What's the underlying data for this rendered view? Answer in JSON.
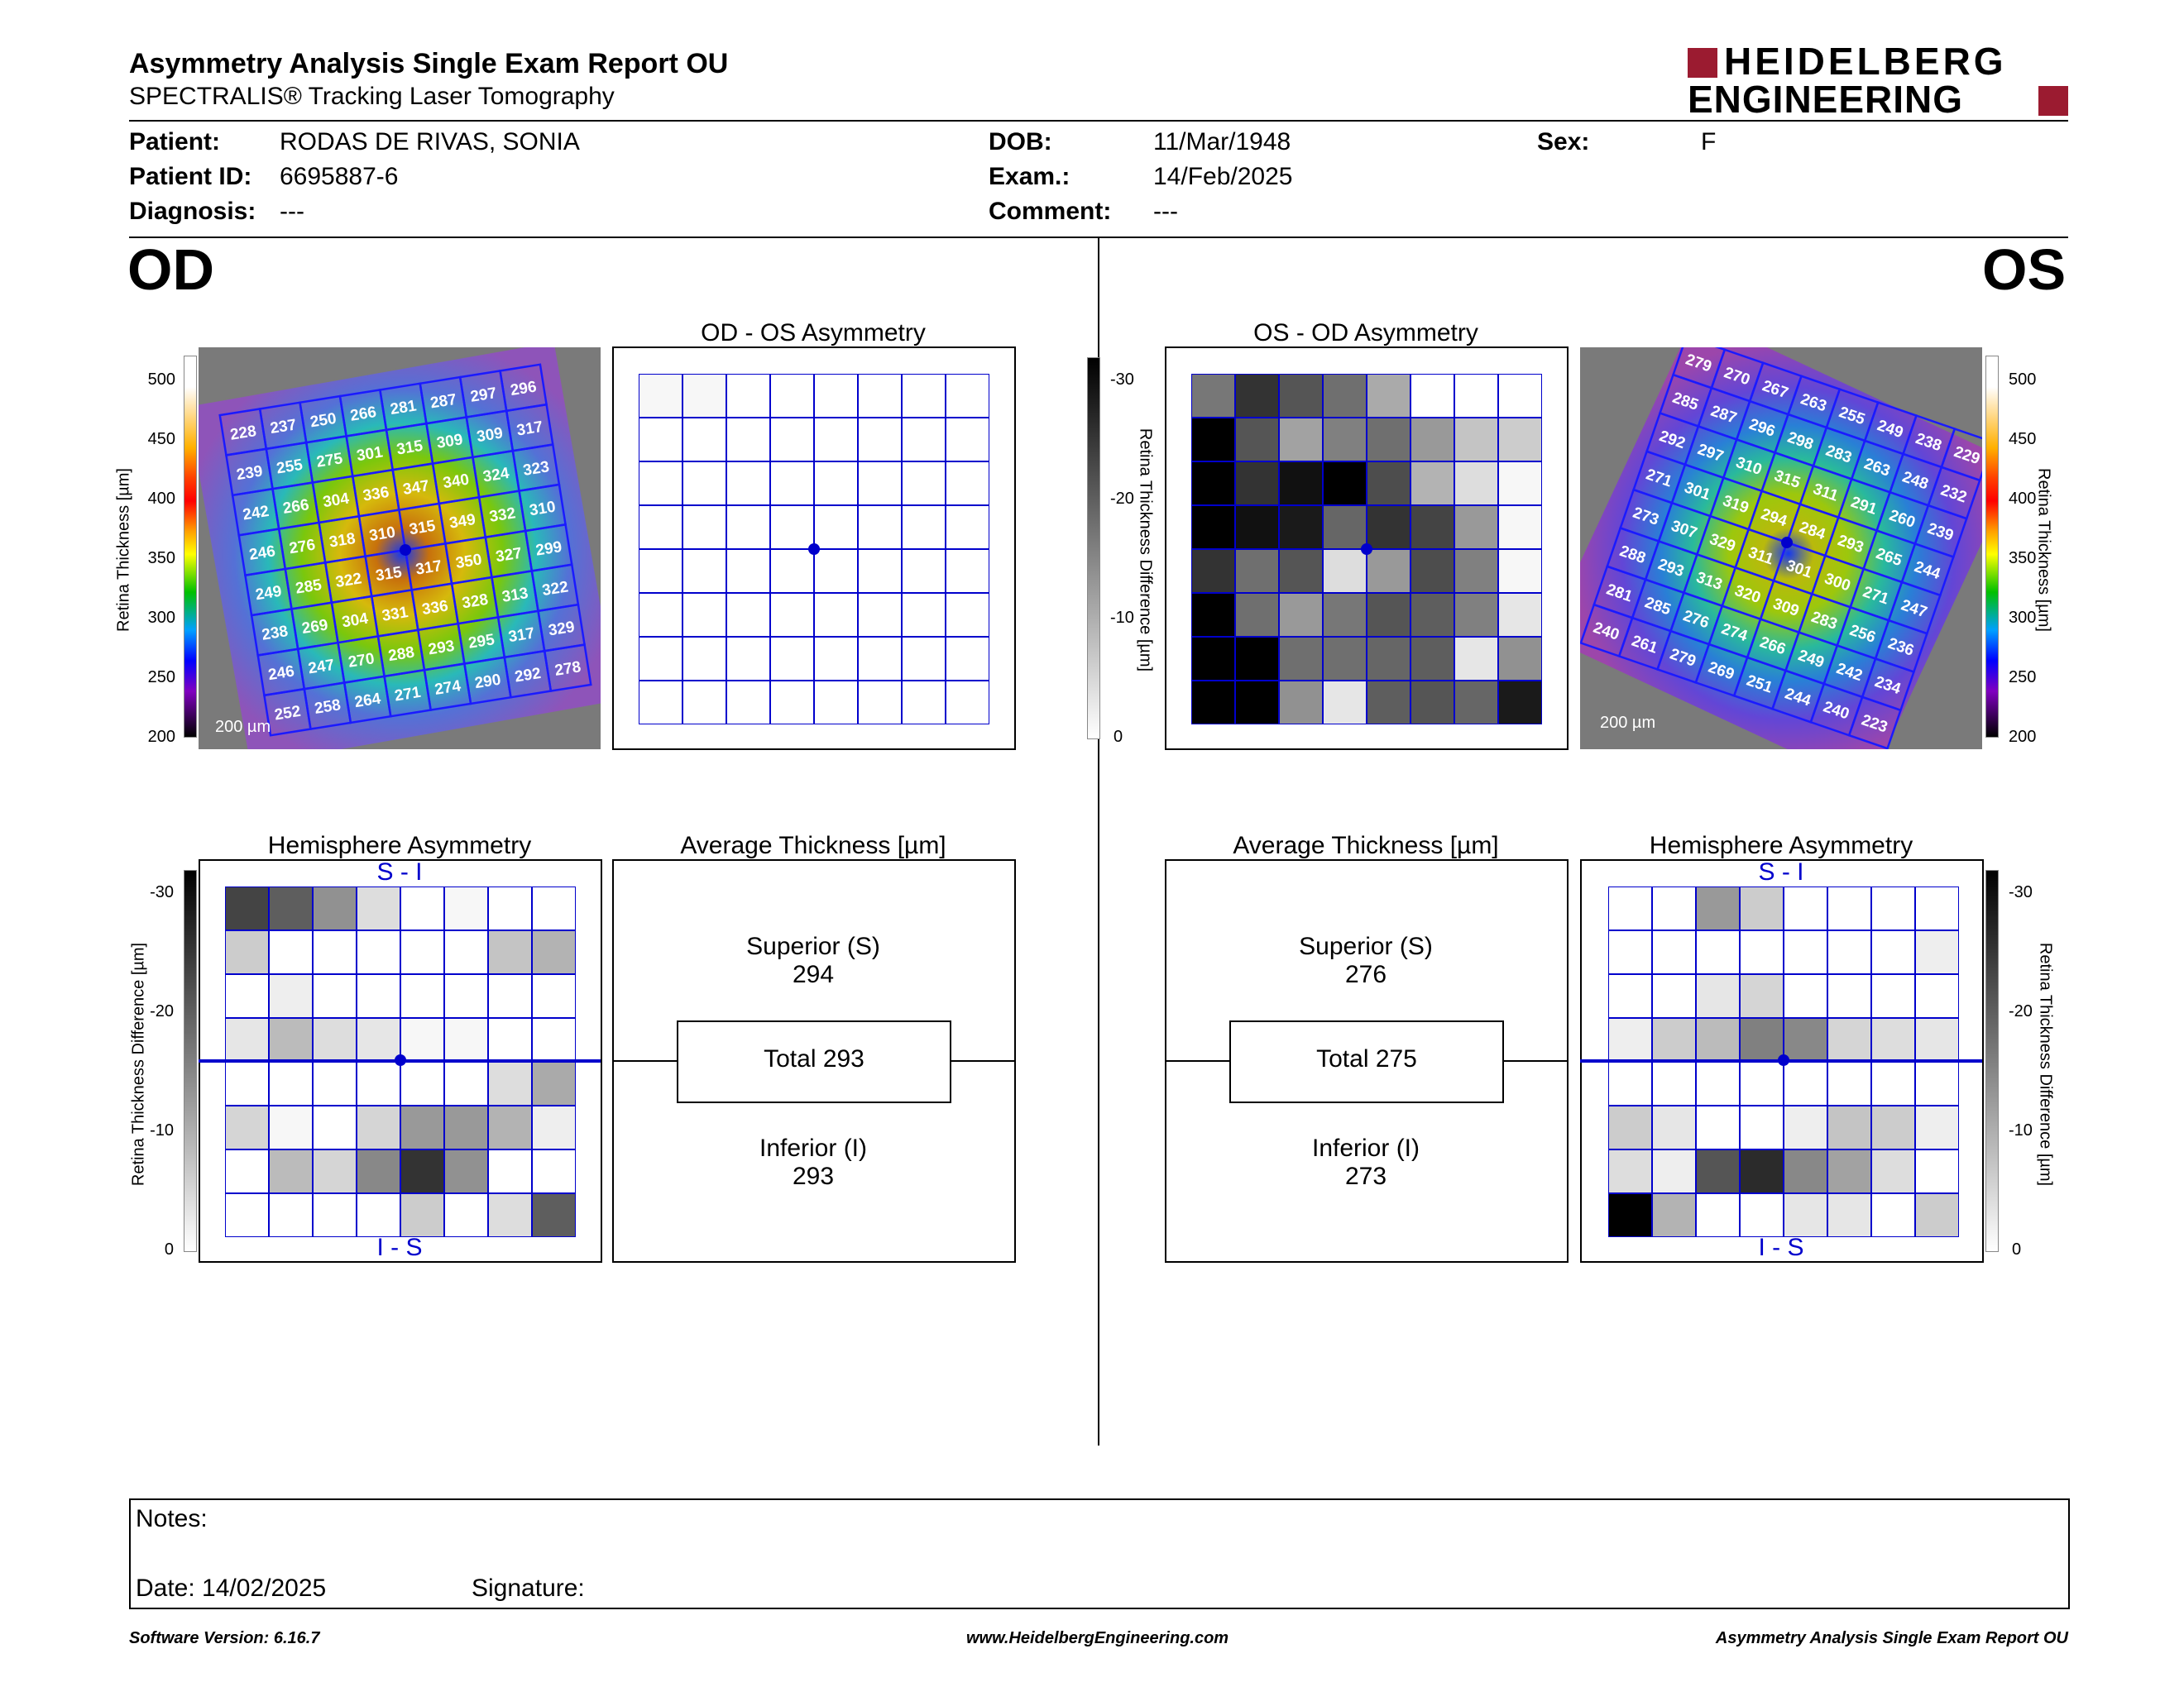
{
  "header": {
    "title": "Asymmetry Analysis Single Exam Report OU",
    "subtitle": "SPECTRALIS® Tracking Laser Tomography",
    "logo_line1": "HEIDELBERG",
    "logo_line2": "ENGINEERING",
    "logo_color": "#9b1b30"
  },
  "patient": {
    "patient_label": "Patient:",
    "patient_value": "RODAS DE RIVAS, SONIA",
    "id_label": "Patient ID:",
    "id_value": "6695887-6",
    "diagnosis_label": "Diagnosis:",
    "diagnosis_value": "---",
    "dob_label": "DOB:",
    "dob_value": "11/Mar/1948",
    "exam_label": "Exam.:",
    "exam_value": "14/Feb/2025",
    "comment_label": "Comment:",
    "comment_value": "---",
    "sex_label": "Sex:",
    "sex_value": "F"
  },
  "eyes": {
    "left": "OD",
    "right": "OS"
  },
  "panels": {
    "od_os_title": "OD - OS Asymmetry",
    "os_od_title": "OS - OD Asymmetry",
    "hemi_title": "Hemisphere Asymmetry",
    "avg_title": "Average Thickness [µm]",
    "si_label": "S - I",
    "is_label": "I - S",
    "scale_label": "200 µm"
  },
  "scales": {
    "thickness_label": "Retina Thickness [µm]",
    "thickness_ticks": [
      "500",
      "450",
      "400",
      "350",
      "300",
      "250",
      "200"
    ],
    "diff_label": "Retina Thickness Difference [µm]",
    "diff_ticks": [
      "-30",
      "-20",
      "-10",
      "0"
    ]
  },
  "od": {
    "superior_label": "Superior (S)",
    "superior_value": "294",
    "total_label": "Total 293",
    "inferior_label": "Inferior (I)",
    "inferior_value": "293",
    "thickness_grid": [
      [
        "228",
        "237",
        "250",
        "266",
        "281",
        "287",
        "297",
        "296"
      ],
      [
        "239",
        "255",
        "275",
        "301",
        "315",
        "309",
        "309",
        "317"
      ],
      [
        "242",
        "266",
        "304",
        "336",
        "347",
        "340",
        "324",
        "323"
      ],
      [
        "246",
        "276",
        "318",
        "310",
        "315",
        "349",
        "332",
        "310"
      ],
      [
        "249",
        "285",
        "322",
        "315",
        "317",
        "350",
        "327",
        "299"
      ],
      [
        "238",
        "269",
        "304",
        "331",
        "336",
        "328",
        "313",
        "322"
      ],
      [
        "246",
        "247",
        "270",
        "288",
        "293",
        "295",
        "317",
        "329"
      ],
      [
        "252",
        "258",
        "264",
        "271",
        "274",
        "290",
        "292",
        "278"
      ]
    ],
    "asym_grid": [
      [
        1,
        1,
        0,
        0,
        0,
        0,
        0,
        0
      ],
      [
        0,
        0,
        0,
        0,
        0,
        0,
        0,
        0
      ],
      [
        0,
        0,
        0,
        0,
        0,
        0,
        0,
        0
      ],
      [
        0,
        0,
        0,
        0,
        0,
        0,
        0,
        0
      ],
      [
        0,
        0,
        0,
        0,
        0,
        0,
        0,
        0
      ],
      [
        0,
        0,
        0,
        0,
        0,
        0,
        0,
        0
      ],
      [
        0,
        0,
        0,
        0,
        0,
        0,
        0,
        0
      ],
      [
        0,
        0,
        0,
        0,
        0,
        0,
        0,
        0
      ]
    ],
    "hemi_grid": [
      [
        22,
        19,
        13,
        4,
        0,
        1,
        0,
        0
      ],
      [
        6,
        0,
        0,
        0,
        0,
        0,
        7,
        9
      ],
      [
        0,
        2,
        0,
        0,
        0,
        0,
        0,
        0
      ],
      [
        3,
        8,
        4,
        3,
        1,
        1,
        0,
        0
      ],
      [
        0,
        0,
        0,
        0,
        0,
        0,
        4,
        10
      ],
      [
        5,
        1,
        0,
        5,
        12,
        12,
        9,
        2
      ],
      [
        0,
        8,
        5,
        14,
        24,
        13,
        0,
        0
      ],
      [
        0,
        0,
        0,
        0,
        6,
        0,
        4,
        19
      ]
    ]
  },
  "os": {
    "superior_label": "Superior (S)",
    "superior_value": "276",
    "total_label": "Total 275",
    "inferior_label": "Inferior (I)",
    "inferior_value": "273",
    "thickness_grid": [
      [
        "279",
        "270",
        "267",
        "263",
        "255",
        "249",
        "238",
        "229"
      ],
      [
        "285",
        "287",
        "296",
        "298",
        "283",
        "263",
        "248",
        "232"
      ],
      [
        "292",
        "297",
        "310",
        "315",
        "311",
        "291",
        "260",
        "239"
      ],
      [
        "271",
        "301",
        "319",
        "294",
        "284",
        "293",
        "265",
        "244"
      ],
      [
        "273",
        "307",
        "329",
        "311",
        "301",
        "300",
        "271",
        "247"
      ],
      [
        "288",
        "293",
        "313",
        "320",
        "309",
        "283",
        "256",
        "236"
      ],
      [
        "281",
        "285",
        "276",
        "274",
        "266",
        "249",
        "242",
        "234"
      ],
      [
        "240",
        "261",
        "279",
        "269",
        "251",
        "244",
        "240",
        "223"
      ]
    ],
    "asym_grid": [
      [
        16,
        24,
        20,
        17,
        10,
        0,
        0,
        0
      ],
      [
        30,
        20,
        11,
        15,
        17,
        12,
        7,
        6
      ],
      [
        30,
        24,
        28,
        30,
        21,
        9,
        4,
        1
      ],
      [
        30,
        28,
        27,
        18,
        24,
        22,
        12,
        1
      ],
      [
        24,
        17,
        20,
        4,
        12,
        21,
        15,
        1
      ],
      [
        30,
        17,
        12,
        16,
        20,
        19,
        15,
        3
      ],
      [
        30,
        30,
        17,
        17,
        18,
        19,
        3,
        13
      ],
      [
        30,
        30,
        13,
        3,
        19,
        20,
        18,
        27
      ]
    ],
    "hemi_grid": [
      [
        0,
        0,
        12,
        6,
        0,
        0,
        0,
        0
      ],
      [
        0,
        0,
        0,
        0,
        0,
        0,
        0,
        2
      ],
      [
        0,
        0,
        3,
        5,
        0,
        0,
        0,
        0
      ],
      [
        2,
        6,
        8,
        15,
        14,
        5,
        4,
        3
      ],
      [
        0,
        0,
        0,
        0,
        0,
        0,
        0,
        0
      ],
      [
        6,
        3,
        0,
        0,
        2,
        7,
        6,
        2
      ],
      [
        4,
        2,
        20,
        25,
        14,
        11,
        4,
        0
      ],
      [
        31,
        9,
        0,
        0,
        3,
        3,
        0,
        6
      ]
    ]
  },
  "notes": {
    "notes_label": "Notes:",
    "date_label": "Date: 14/02/2025",
    "signature_label": "Signature:"
  },
  "footer": {
    "software": "Software Version: 6.16.7",
    "website": "www.HeidelbergEngineering.com",
    "report": "Asymmetry Analysis Single Exam Report OU"
  }
}
